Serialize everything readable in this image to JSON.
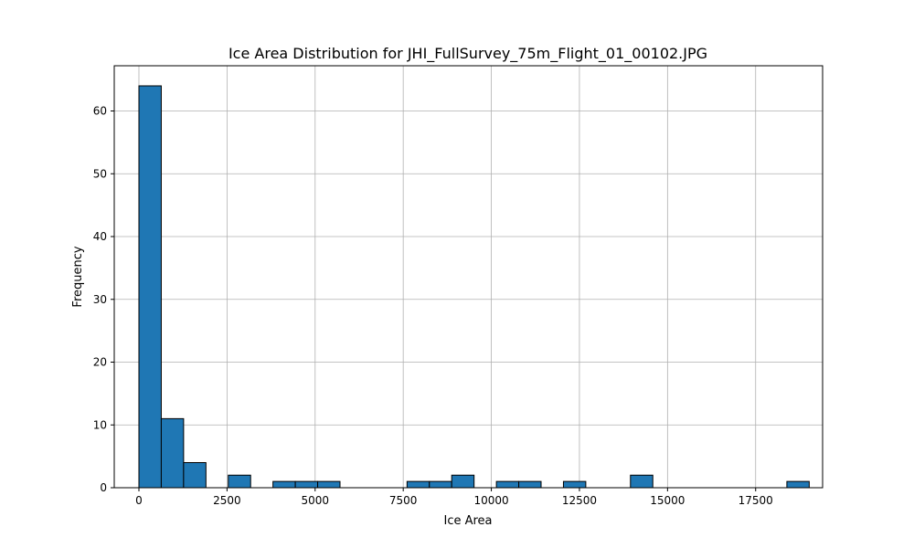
{
  "chart_data": {
    "type": "histogram",
    "title": "Ice Area Distribution for JHI_FullSurvey_75m_Flight_01_00102.JPG",
    "xlabel": "Ice Area",
    "ylabel": "Frequency",
    "xlim": [
      -700,
      19400
    ],
    "ylim": [
      0,
      67.2
    ],
    "xticks": [
      0,
      2500,
      5000,
      7500,
      10000,
      12500,
      15000,
      17500
    ],
    "xtick_labels": [
      "0",
      "2500",
      "5000",
      "7500",
      "10000",
      "12500",
      "15000",
      "17500"
    ],
    "yticks": [
      0,
      10,
      20,
      30,
      40,
      50,
      60
    ],
    "ytick_labels": [
      "0",
      "10",
      "20",
      "30",
      "40",
      "50",
      "60"
    ],
    "grid": true,
    "bar_color": "#1f77b4",
    "edge_color": "#000000",
    "bins": [
      {
        "x0": 0,
        "x1": 634,
        "count": 64
      },
      {
        "x0": 634,
        "x1": 1268,
        "count": 11
      },
      {
        "x0": 1268,
        "x1": 1902,
        "count": 4
      },
      {
        "x0": 1902,
        "x1": 2536,
        "count": 0
      },
      {
        "x0": 2536,
        "x1": 3170,
        "count": 2
      },
      {
        "x0": 3170,
        "x1": 3804,
        "count": 0
      },
      {
        "x0": 3804,
        "x1": 4438,
        "count": 1
      },
      {
        "x0": 4438,
        "x1": 5072,
        "count": 1
      },
      {
        "x0": 5072,
        "x1": 5706,
        "count": 1
      },
      {
        "x0": 5706,
        "x1": 6340,
        "count": 0
      },
      {
        "x0": 6340,
        "x1": 6974,
        "count": 0
      },
      {
        "x0": 6974,
        "x1": 7608,
        "count": 0
      },
      {
        "x0": 7608,
        "x1": 8242,
        "count": 1
      },
      {
        "x0": 8242,
        "x1": 8876,
        "count": 1
      },
      {
        "x0": 8876,
        "x1": 9510,
        "count": 2
      },
      {
        "x0": 9510,
        "x1": 10144,
        "count": 0
      },
      {
        "x0": 10144,
        "x1": 10778,
        "count": 1
      },
      {
        "x0": 10778,
        "x1": 11412,
        "count": 1
      },
      {
        "x0": 11412,
        "x1": 12046,
        "count": 0
      },
      {
        "x0": 12046,
        "x1": 12680,
        "count": 1
      },
      {
        "x0": 12680,
        "x1": 13314,
        "count": 0
      },
      {
        "x0": 13314,
        "x1": 13948,
        "count": 0
      },
      {
        "x0": 13948,
        "x1": 14582,
        "count": 2
      },
      {
        "x0": 14582,
        "x1": 15216,
        "count": 0
      },
      {
        "x0": 15216,
        "x1": 15850,
        "count": 0
      },
      {
        "x0": 15850,
        "x1": 16484,
        "count": 0
      },
      {
        "x0": 16484,
        "x1": 17118,
        "count": 0
      },
      {
        "x0": 17118,
        "x1": 17752,
        "count": 0
      },
      {
        "x0": 17752,
        "x1": 18386,
        "count": 0
      },
      {
        "x0": 18386,
        "x1": 19020,
        "count": 1
      }
    ]
  }
}
